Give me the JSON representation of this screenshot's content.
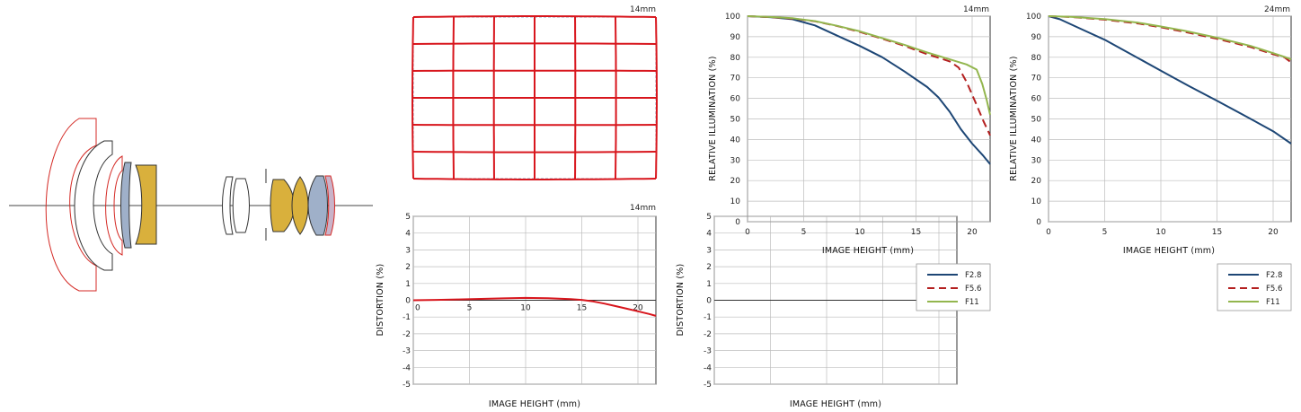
{
  "colors": {
    "f28": "#1d4675",
    "f56": "#b42020",
    "f11": "#93b64e",
    "grid_red": "#d8161d",
    "lens_yellow": "#d9b03c",
    "lens_blue": "#9fb0c9",
    "lens_outline_red": "#d42a25",
    "axis": "#333333",
    "gridline": "#bbbbbb"
  },
  "grid_distortion": {
    "caption": "14mm"
  },
  "chart_data": [
    {
      "id": "distortion-14mm",
      "type": "line",
      "caption": "14mm",
      "xlabel": "IMAGE HEIGHT (mm)",
      "ylabel": "DISTORTION (%)",
      "xlim": [
        0,
        21.6
      ],
      "ylim": [
        -5,
        5
      ],
      "xticks": [
        0,
        5,
        10,
        15,
        20
      ],
      "yticks": [
        5,
        4,
        3,
        2,
        1,
        0,
        -1,
        -2,
        -3,
        -4,
        -5
      ],
      "grid": true,
      "series": [
        {
          "color": "#d8161d",
          "x": [
            0,
            2,
            4,
            6,
            8,
            10,
            12,
            14,
            15,
            16,
            17,
            18,
            19,
            20,
            21,
            21.6
          ],
          "y": [
            0,
            0.02,
            0.05,
            0.08,
            0.11,
            0.14,
            0.12,
            0.07,
            0.02,
            -0.07,
            -0.2,
            -0.35,
            -0.5,
            -0.66,
            -0.82,
            -0.93
          ]
        }
      ]
    },
    {
      "id": "distortion-24mm",
      "type": "line",
      "caption": "",
      "xlabel": "IMAGE HEIGHT (mm)",
      "ylabel": "DISTORTION (%)",
      "xlim": [
        0,
        21.6
      ],
      "ylim": [
        -5,
        5
      ],
      "xticks": [],
      "yticks": [
        5,
        4,
        3,
        2,
        1,
        0,
        -1,
        -2,
        -3,
        -4,
        -5
      ],
      "grid": true,
      "series": []
    },
    {
      "id": "illumination-14mm",
      "type": "line",
      "caption": "14mm",
      "xlabel": "IMAGE HEIGHT (mm)",
      "ylabel": "RELATIVE ILLUMINATION (%)",
      "xlim": [
        0,
        21.6
      ],
      "ylim": [
        0,
        100
      ],
      "xticks": [
        0,
        5,
        10,
        15,
        20
      ],
      "yticks": [
        100,
        90,
        80,
        70,
        60,
        50,
        40,
        30,
        20,
        10,
        0
      ],
      "grid": true,
      "legend_position": "below-right",
      "series": [
        {
          "name": "F2.8",
          "key": "f28",
          "x": [
            0,
            2,
            4,
            6,
            8,
            10,
            12,
            14,
            16,
            17,
            18,
            19,
            20,
            21,
            21.6
          ],
          "y": [
            100,
            99.5,
            98.5,
            95.5,
            90.5,
            85.5,
            80,
            73,
            65.5,
            60.5,
            53.5,
            45,
            38,
            32,
            28
          ]
        },
        {
          "name": "F5.6",
          "key": "f56",
          "x": [
            0,
            2,
            4,
            6,
            8,
            10,
            12,
            14,
            16,
            18,
            18.8,
            19.5,
            20.3,
            21,
            21.6
          ],
          "y": [
            100,
            99.5,
            98.8,
            97.5,
            95.2,
            92.3,
            89,
            85.5,
            81.5,
            78,
            75,
            68,
            58,
            49,
            42
          ]
        },
        {
          "name": "F11",
          "key": "f11",
          "x": [
            0,
            2,
            4,
            6,
            8,
            10,
            12,
            14,
            16,
            18,
            19.5,
            20.4,
            20.9,
            21.3,
            21.6
          ],
          "y": [
            100,
            99.6,
            99,
            97.6,
            95.3,
            92.6,
            89.3,
            86,
            82.3,
            79,
            76.5,
            74,
            67,
            59,
            52
          ]
        }
      ]
    },
    {
      "id": "illumination-24mm",
      "type": "line",
      "caption": "24mm",
      "xlabel": "IMAGE HEIGHT (mm)",
      "ylabel": "RELATIVE ILLUMINATION (%)",
      "xlim": [
        0,
        21.6
      ],
      "ylim": [
        0,
        100
      ],
      "xticks": [
        0,
        5,
        10,
        15,
        20
      ],
      "yticks": [
        100,
        90,
        80,
        70,
        60,
        50,
        40,
        30,
        20,
        10,
        0
      ],
      "grid": true,
      "legend_position": "below-right",
      "series": [
        {
          "name": "F2.8",
          "key": "f28",
          "x": [
            0,
            1,
            3,
            5,
            7.5,
            10,
            12.5,
            15,
            17.5,
            20,
            21.6
          ],
          "y": [
            100,
            98.5,
            93.5,
            88.5,
            81,
            73.5,
            66,
            58.8,
            51.5,
            44,
            38
          ]
        },
        {
          "name": "F5.6",
          "key": "f56",
          "x": [
            0,
            2,
            5,
            8,
            10,
            12,
            15,
            18,
            20,
            21,
            21.6
          ],
          "y": [
            100,
            99.6,
            98.3,
            96.4,
            94.6,
            92.5,
            89,
            85,
            81.5,
            80,
            77.5
          ]
        },
        {
          "name": "F11",
          "key": "f11",
          "x": [
            0,
            2,
            5,
            8,
            10,
            12,
            15,
            18,
            20,
            21,
            21.6
          ],
          "y": [
            100,
            99.7,
            98.6,
            96.8,
            95,
            93,
            89.5,
            85.5,
            82,
            80.2,
            79
          ]
        }
      ]
    }
  ]
}
